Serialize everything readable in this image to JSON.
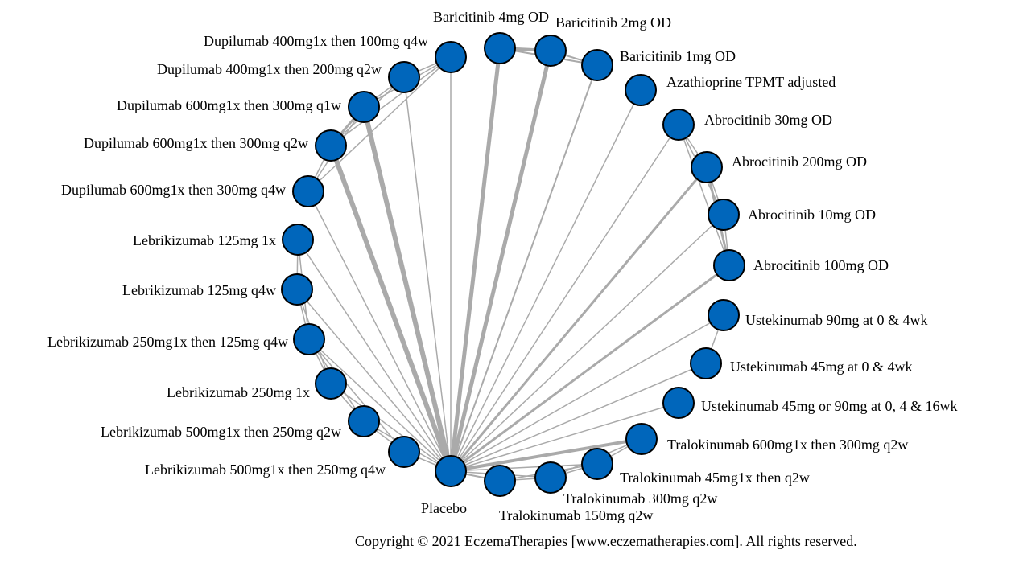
{
  "colors": {
    "node_fill": "#0066BB",
    "node_stroke": "#000000",
    "edge": "#AAAAAA"
  },
  "nodes": [
    {
      "id": "bar4",
      "label": "Baricitinib 4mg OD"
    },
    {
      "id": "bar2",
      "label": "Baricitinib 2mg OD"
    },
    {
      "id": "bar1",
      "label": "Baricitinib 1mg OD"
    },
    {
      "id": "aza",
      "label": "Azathioprine TPMT adjusted"
    },
    {
      "id": "abr30",
      "label": "Abrocitinib 30mg OD"
    },
    {
      "id": "abr200",
      "label": "Abrocitinib 200mg OD"
    },
    {
      "id": "abr10",
      "label": "Abrocitinib 10mg OD"
    },
    {
      "id": "abr100",
      "label": "Abrocitinib 100mg OD"
    },
    {
      "id": "ust90",
      "label": "Ustekinumab 90mg at 0 & 4wk"
    },
    {
      "id": "ust45",
      "label": "Ustekinumab 45mg at 0 & 4wk"
    },
    {
      "id": "ust4590",
      "label": "Ustekinumab 45mg or 90mg at 0, 4 & 16wk"
    },
    {
      "id": "tra600",
      "label": "Tralokinumab 600mg1x then 300mg q2w"
    },
    {
      "id": "tra45",
      "label": "Tralokinumab 45mg1x then q2w"
    },
    {
      "id": "tra300",
      "label": "Tralokinumab 300mg q2w"
    },
    {
      "id": "tra150",
      "label": "Tralokinumab 150mg q2w"
    },
    {
      "id": "pbo",
      "label": "Placebo"
    },
    {
      "id": "leb500q4",
      "label": "Lebrikizumab 500mg1x then 250mg q4w"
    },
    {
      "id": "leb500q2",
      "label": "Lebrikizumab 500mg1x then 250mg q2w"
    },
    {
      "id": "leb250",
      "label": "Lebrikizumab 250mg 1x"
    },
    {
      "id": "leb250q4",
      "label": "Lebrikizumab 250mg1x then 125mg q4w"
    },
    {
      "id": "leb125q4",
      "label": "Lebrikizumab 125mg q4w"
    },
    {
      "id": "leb125",
      "label": "Lebrikizumab 125mg 1x"
    },
    {
      "id": "dup600q4",
      "label": "Dupilumab 600mg1x then 300mg q4w"
    },
    {
      "id": "dup600q2",
      "label": "Dupilumab 600mg1x then 300mg q2w"
    },
    {
      "id": "dup600q1",
      "label": "Dupilumab 600mg1x then 300mg q1w"
    },
    {
      "id": "dup400q2",
      "label": "Dupilumab 400mg1x then 200mg q2w"
    },
    {
      "id": "dup400q4",
      "label": "Dupilumab 400mg1x then 100mg q4w"
    }
  ],
  "edges": [
    [
      "pbo",
      "bar4",
      5
    ],
    [
      "pbo",
      "bar2",
      5
    ],
    [
      "pbo",
      "bar1",
      2
    ],
    [
      "pbo",
      "aza",
      1.5
    ],
    [
      "pbo",
      "abr30",
      1.5
    ],
    [
      "pbo",
      "abr200",
      3
    ],
    [
      "pbo",
      "abr10",
      1.5
    ],
    [
      "pbo",
      "abr100",
      3
    ],
    [
      "pbo",
      "ust90",
      1.5
    ],
    [
      "pbo",
      "ust45",
      1.5
    ],
    [
      "pbo",
      "ust4590",
      1.5
    ],
    [
      "pbo",
      "tra600",
      4
    ],
    [
      "pbo",
      "tra45",
      1.5
    ],
    [
      "pbo",
      "tra300",
      1.5
    ],
    [
      "pbo",
      "tra150",
      2
    ],
    [
      "pbo",
      "leb500q4",
      1.5
    ],
    [
      "pbo",
      "leb500q2",
      1.5
    ],
    [
      "pbo",
      "leb250",
      1.5
    ],
    [
      "pbo",
      "leb250q4",
      1.5
    ],
    [
      "pbo",
      "leb125q4",
      1.5
    ],
    [
      "pbo",
      "leb125",
      1.5
    ],
    [
      "pbo",
      "dup600q4",
      1.5
    ],
    [
      "pbo",
      "dup600q2",
      6
    ],
    [
      "pbo",
      "dup600q1",
      6
    ],
    [
      "pbo",
      "dup400q2",
      1.5
    ],
    [
      "pbo",
      "dup400q4",
      1.5
    ],
    [
      "bar4",
      "bar2",
      4
    ],
    [
      "bar2",
      "bar1",
      2
    ],
    [
      "bar4",
      "bar1",
      2
    ],
    [
      "abr30",
      "abr200",
      1.5
    ],
    [
      "abr200",
      "abr10",
      1.5
    ],
    [
      "abr10",
      "abr100",
      1.5
    ],
    [
      "abr30",
      "abr10",
      1.5
    ],
    [
      "abr200",
      "abr100",
      3
    ],
    [
      "abr30",
      "abr100",
      1.5
    ],
    [
      "ust90",
      "ust45",
      1.5
    ],
    [
      "tra600",
      "tra45",
      1.5
    ],
    [
      "tra45",
      "tra300",
      1.5
    ],
    [
      "tra300",
      "tra150",
      1.5
    ],
    [
      "tra45",
      "tra150",
      1.5
    ],
    [
      "tra600",
      "tra300",
      1.5
    ],
    [
      "leb125",
      "leb125q4",
      1.5
    ],
    [
      "leb125q4",
      "leb250q4",
      1.5
    ],
    [
      "leb250q4",
      "leb250",
      1.5
    ],
    [
      "leb250",
      "leb500q2",
      1.5
    ],
    [
      "leb500q2",
      "leb500q4",
      1.5
    ],
    [
      "leb125",
      "leb250q4",
      1.5
    ],
    [
      "leb125q4",
      "leb250",
      1.5
    ],
    [
      "leb250q4",
      "leb500q2",
      1.5
    ],
    [
      "leb250q4",
      "leb500q4",
      1.5
    ],
    [
      "dup600q4",
      "dup600q2",
      1.5
    ],
    [
      "dup600q2",
      "dup600q1",
      3
    ],
    [
      "dup600q1",
      "dup400q2",
      1.5
    ],
    [
      "dup400q2",
      "dup400q4",
      1.5
    ],
    [
      "dup600q4",
      "dup600q1",
      1.5
    ],
    [
      "dup600q2",
      "dup400q2",
      1.5
    ],
    [
      "dup600q1",
      "dup400q4",
      1.5
    ],
    [
      "dup600q2",
      "dup400q4",
      1.5
    ],
    [
      "dup600q4",
      "dup400q4",
      1.5
    ]
  ],
  "copyright": "Copyright © 2021 EczemaTherapies [www.eczematherapies.com]. All rights reserved."
}
